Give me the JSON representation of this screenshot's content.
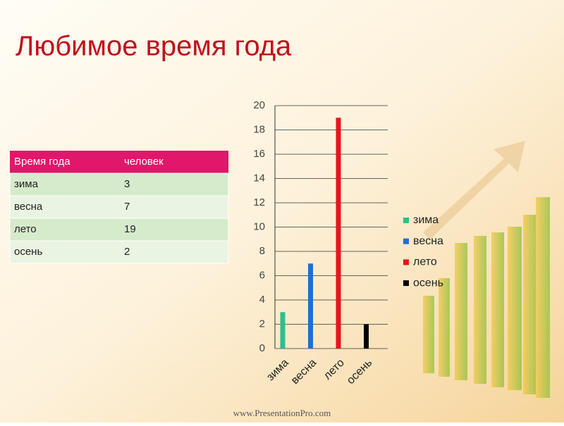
{
  "title": "Любимое время года",
  "footer": "www.PresentationPro.com",
  "table": {
    "header": [
      "Время года",
      "человек"
    ],
    "rows": [
      [
        "зима",
        3
      ],
      [
        "весна",
        7
      ],
      [
        "лето",
        19
      ],
      [
        "осень",
        2
      ]
    ]
  },
  "chart_data": {
    "type": "bar",
    "categories": [
      "зима",
      "весна",
      "лето",
      "осень"
    ],
    "values": [
      3,
      7,
      19,
      2
    ],
    "colors": [
      "#2dbf8c",
      "#1f6fd0",
      "#e8141c",
      "#000000"
    ],
    "ylim": [
      0,
      20
    ],
    "yticks": [
      0,
      2,
      4,
      6,
      8,
      10,
      12,
      14,
      16,
      18,
      20
    ],
    "grid": true,
    "legend": "right"
  }
}
